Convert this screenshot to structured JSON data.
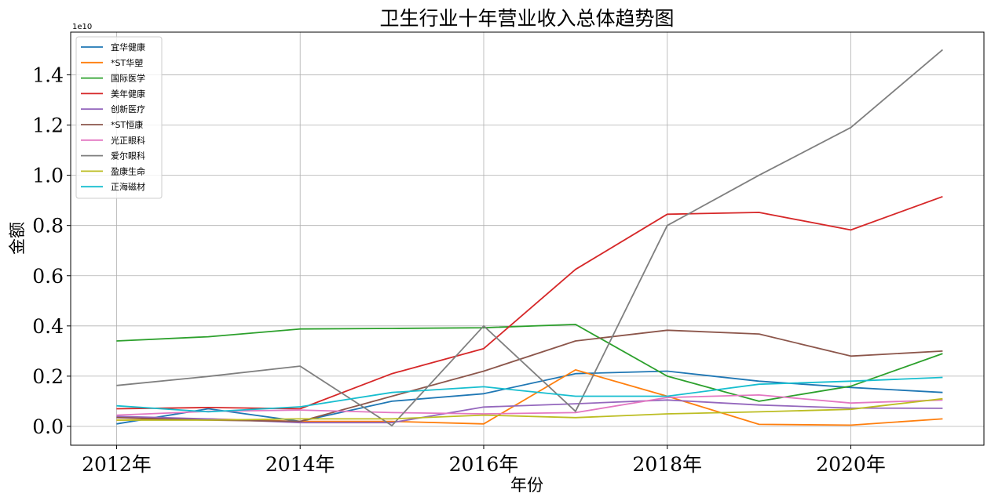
{
  "chart_data": {
    "type": "line",
    "title": "卫生行业十年营业收入总体趋势图",
    "xlabel": "年份",
    "ylabel": "金额",
    "y_offset_text": "1e10",
    "x": [
      2012,
      2013,
      2014,
      2015,
      2016,
      2017,
      2018,
      2019,
      2020,
      2021
    ],
    "x_ticks": [
      2012,
      2014,
      2016,
      2018,
      2020
    ],
    "x_tick_labels": [
      "2012年",
      "2014年",
      "2016年",
      "2018年",
      "2020年"
    ],
    "y_ticks": [
      0,
      0.2,
      0.4,
      0.6,
      0.8,
      1.0,
      1.2,
      1.4
    ],
    "y_tick_labels": [
      "0.0",
      "0.2",
      "0.4",
      "0.6",
      "0.8",
      "1.0",
      "1.2",
      "1.4"
    ],
    "xlim": [
      2011.5,
      2021.45
    ],
    "ylim": [
      -0.075,
      1.57
    ],
    "y_unit_multiplier": 10000000000,
    "grid": true,
    "legend_position": "top-left",
    "series": [
      {
        "name": "宜华健康",
        "color": "#1f77b4",
        "values": [
          0.01,
          0.07,
          0.02,
          0.1,
          0.13,
          0.21,
          0.22,
          0.18,
          0.155,
          0.135
        ]
      },
      {
        "name": "*ST华塑",
        "color": "#ff7f0e",
        "values": [
          0.025,
          0.03,
          0.02,
          0.02,
          0.01,
          0.225,
          0.12,
          0.008,
          0.005,
          0.03
        ]
      },
      {
        "name": "国际医学",
        "color": "#2ca02c",
        "values": [
          0.34,
          0.357,
          0.388,
          0.39,
          0.393,
          0.406,
          0.2,
          0.1,
          0.16,
          0.29
        ]
      },
      {
        "name": "美年健康",
        "color": "#d62728",
        "values": [
          0.07,
          0.075,
          0.07,
          0.21,
          0.31,
          0.625,
          0.845,
          0.852,
          0.782,
          0.915
        ]
      },
      {
        "name": "创新医疗",
        "color": "#9467bd",
        "values": [
          0.04,
          0.03,
          0.015,
          0.015,
          0.077,
          0.09,
          0.105,
          0.085,
          0.073,
          0.072
        ]
      },
      {
        "name": "*ST恒康",
        "color": "#8c564b",
        "values": [
          0.035,
          0.025,
          0.02,
          0.12,
          0.22,
          0.34,
          0.383,
          0.368,
          0.28,
          0.3
        ]
      },
      {
        "name": "光正眼科",
        "color": "#e377c2",
        "values": [
          0.045,
          0.06,
          0.065,
          0.055,
          0.05,
          0.055,
          0.115,
          0.125,
          0.093,
          0.105
        ]
      },
      {
        "name": "爱尔眼科",
        "color": "#7f7f7f",
        "values": [
          0.163,
          0.199,
          0.24,
          0.003,
          0.4,
          0.06,
          0.8,
          1.0,
          1.19,
          1.5
        ]
      },
      {
        "name": "盈康生命",
        "color": "#bcbd22",
        "values": [
          0.025,
          0.025,
          0.03,
          0.03,
          0.045,
          0.035,
          0.05,
          0.058,
          0.068,
          0.11
        ]
      },
      {
        "name": "正海磁材",
        "color": "#17becf",
        "values": [
          0.082,
          0.058,
          0.078,
          0.135,
          0.158,
          0.12,
          0.12,
          0.168,
          0.18,
          0.195
        ]
      }
    ]
  }
}
